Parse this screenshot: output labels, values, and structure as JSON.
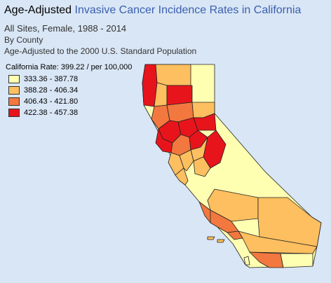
{
  "title": {
    "plain": "Age-Adjusted ",
    "link": "Invasive Cancer Incidence Rates in California"
  },
  "subtitle1": "All Sites, Female, 1988 - 2014",
  "subtitle2": "By County",
  "subtitle3": "Age-Adjusted to the 2000 U.S. Standard Population",
  "state_rate": "California Rate: 399.22 / per 100,000",
  "legend": [
    {
      "label": "333.36 - 387.78",
      "color": "#ffffb2"
    },
    {
      "label": "388.28 - 406.34",
      "color": "#fdbf5f"
    },
    {
      "label": "406.43 - 421.80",
      "color": "#f2783f"
    },
    {
      "label": "422.38 - 457.38",
      "color": "#e8141c"
    }
  ],
  "colors": {
    "background": "#d9e6f5",
    "title_link": "#3a5fb0",
    "county_border": "#222222"
  }
}
